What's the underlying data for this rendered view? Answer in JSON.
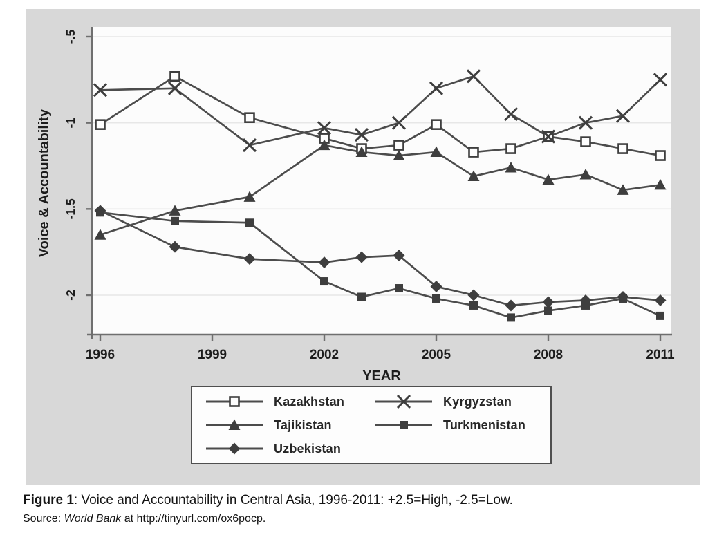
{
  "figure": {
    "caption_bold": "Figure 1",
    "caption_text": ": Voice and Accountability in Central Asia, 1996-2011: +2.5=High, -2.5=Low.",
    "source_label": "Source: ",
    "source_italic": "World Bank",
    "source_text": " at http://tinyurl.com/ox6pocp."
  },
  "chart_data": {
    "type": "line",
    "title": "",
    "xlabel": "YEAR",
    "ylabel": "Voice & Accountability",
    "x": [
      1996,
      1998,
      2000,
      2002,
      2003,
      2004,
      2005,
      2006,
      2007,
      2008,
      2009,
      2010,
      2011
    ],
    "x_tick_labels": [
      "1996",
      "1999",
      "2002",
      "2005",
      "2008",
      "2011"
    ],
    "x_tick_values": [
      1996,
      1999,
      2002,
      2005,
      2008,
      2011
    ],
    "y_tick_labels": [
      "-.5",
      "-1",
      "-1.5",
      "-2"
    ],
    "y_tick_values": [
      -0.5,
      -1,
      -1.5,
      -2
    ],
    "xlim": [
      1995.8,
      2011.3
    ],
    "ylim": [
      -2.28,
      -0.44
    ],
    "grid": "horizontal",
    "legend_position": "below-plot",
    "series": [
      {
        "name": "Kazakhstan",
        "marker": "square-hollow",
        "values": [
          -1.01,
          -0.73,
          -0.97,
          -1.09,
          -1.15,
          -1.13,
          -1.01,
          -1.17,
          -1.15,
          -1.08,
          -1.11,
          -1.15,
          -1.19
        ]
      },
      {
        "name": "Kyrgyzstan",
        "marker": "x",
        "values": [
          -0.81,
          -0.8,
          -1.13,
          -1.03,
          -1.07,
          -1.0,
          -0.8,
          -0.73,
          -0.95,
          -1.08,
          -1.0,
          -0.96,
          -0.75
        ]
      },
      {
        "name": "Tajikistan",
        "marker": "triangle",
        "values": [
          -1.65,
          -1.51,
          -1.43,
          -1.13,
          -1.17,
          -1.19,
          -1.17,
          -1.31,
          -1.26,
          -1.33,
          -1.3,
          -1.39,
          -1.36
        ]
      },
      {
        "name": "Turkmenistan",
        "marker": "square-filled",
        "values": [
          -1.52,
          -1.57,
          -1.58,
          -1.92,
          -2.01,
          -1.96,
          -2.02,
          -2.06,
          -2.13,
          -2.09,
          -2.06,
          -2.02,
          -2.12
        ]
      },
      {
        "name": "Uzbekistan",
        "marker": "diamond",
        "values": [
          -1.51,
          -1.72,
          -1.79,
          -1.81,
          -1.78,
          -1.77,
          -1.95,
          -2.0,
          -2.06,
          -2.04,
          -2.03,
          -2.01,
          -2.03
        ]
      }
    ],
    "legend_order": [
      "Kazakhstan",
      "Kyrgyzstan",
      "Tajikistan",
      "Turkmenistan",
      "Uzbekistan"
    ],
    "colors": {
      "panel_bg": "#d8d8d8",
      "plot_bg": "#fcfcfc",
      "gridline": "#e7e7e7",
      "axis": "#6f6f6f",
      "line": "#4c4c4c",
      "marker": "#3e3e3e",
      "text": "#1c1c1c"
    }
  }
}
